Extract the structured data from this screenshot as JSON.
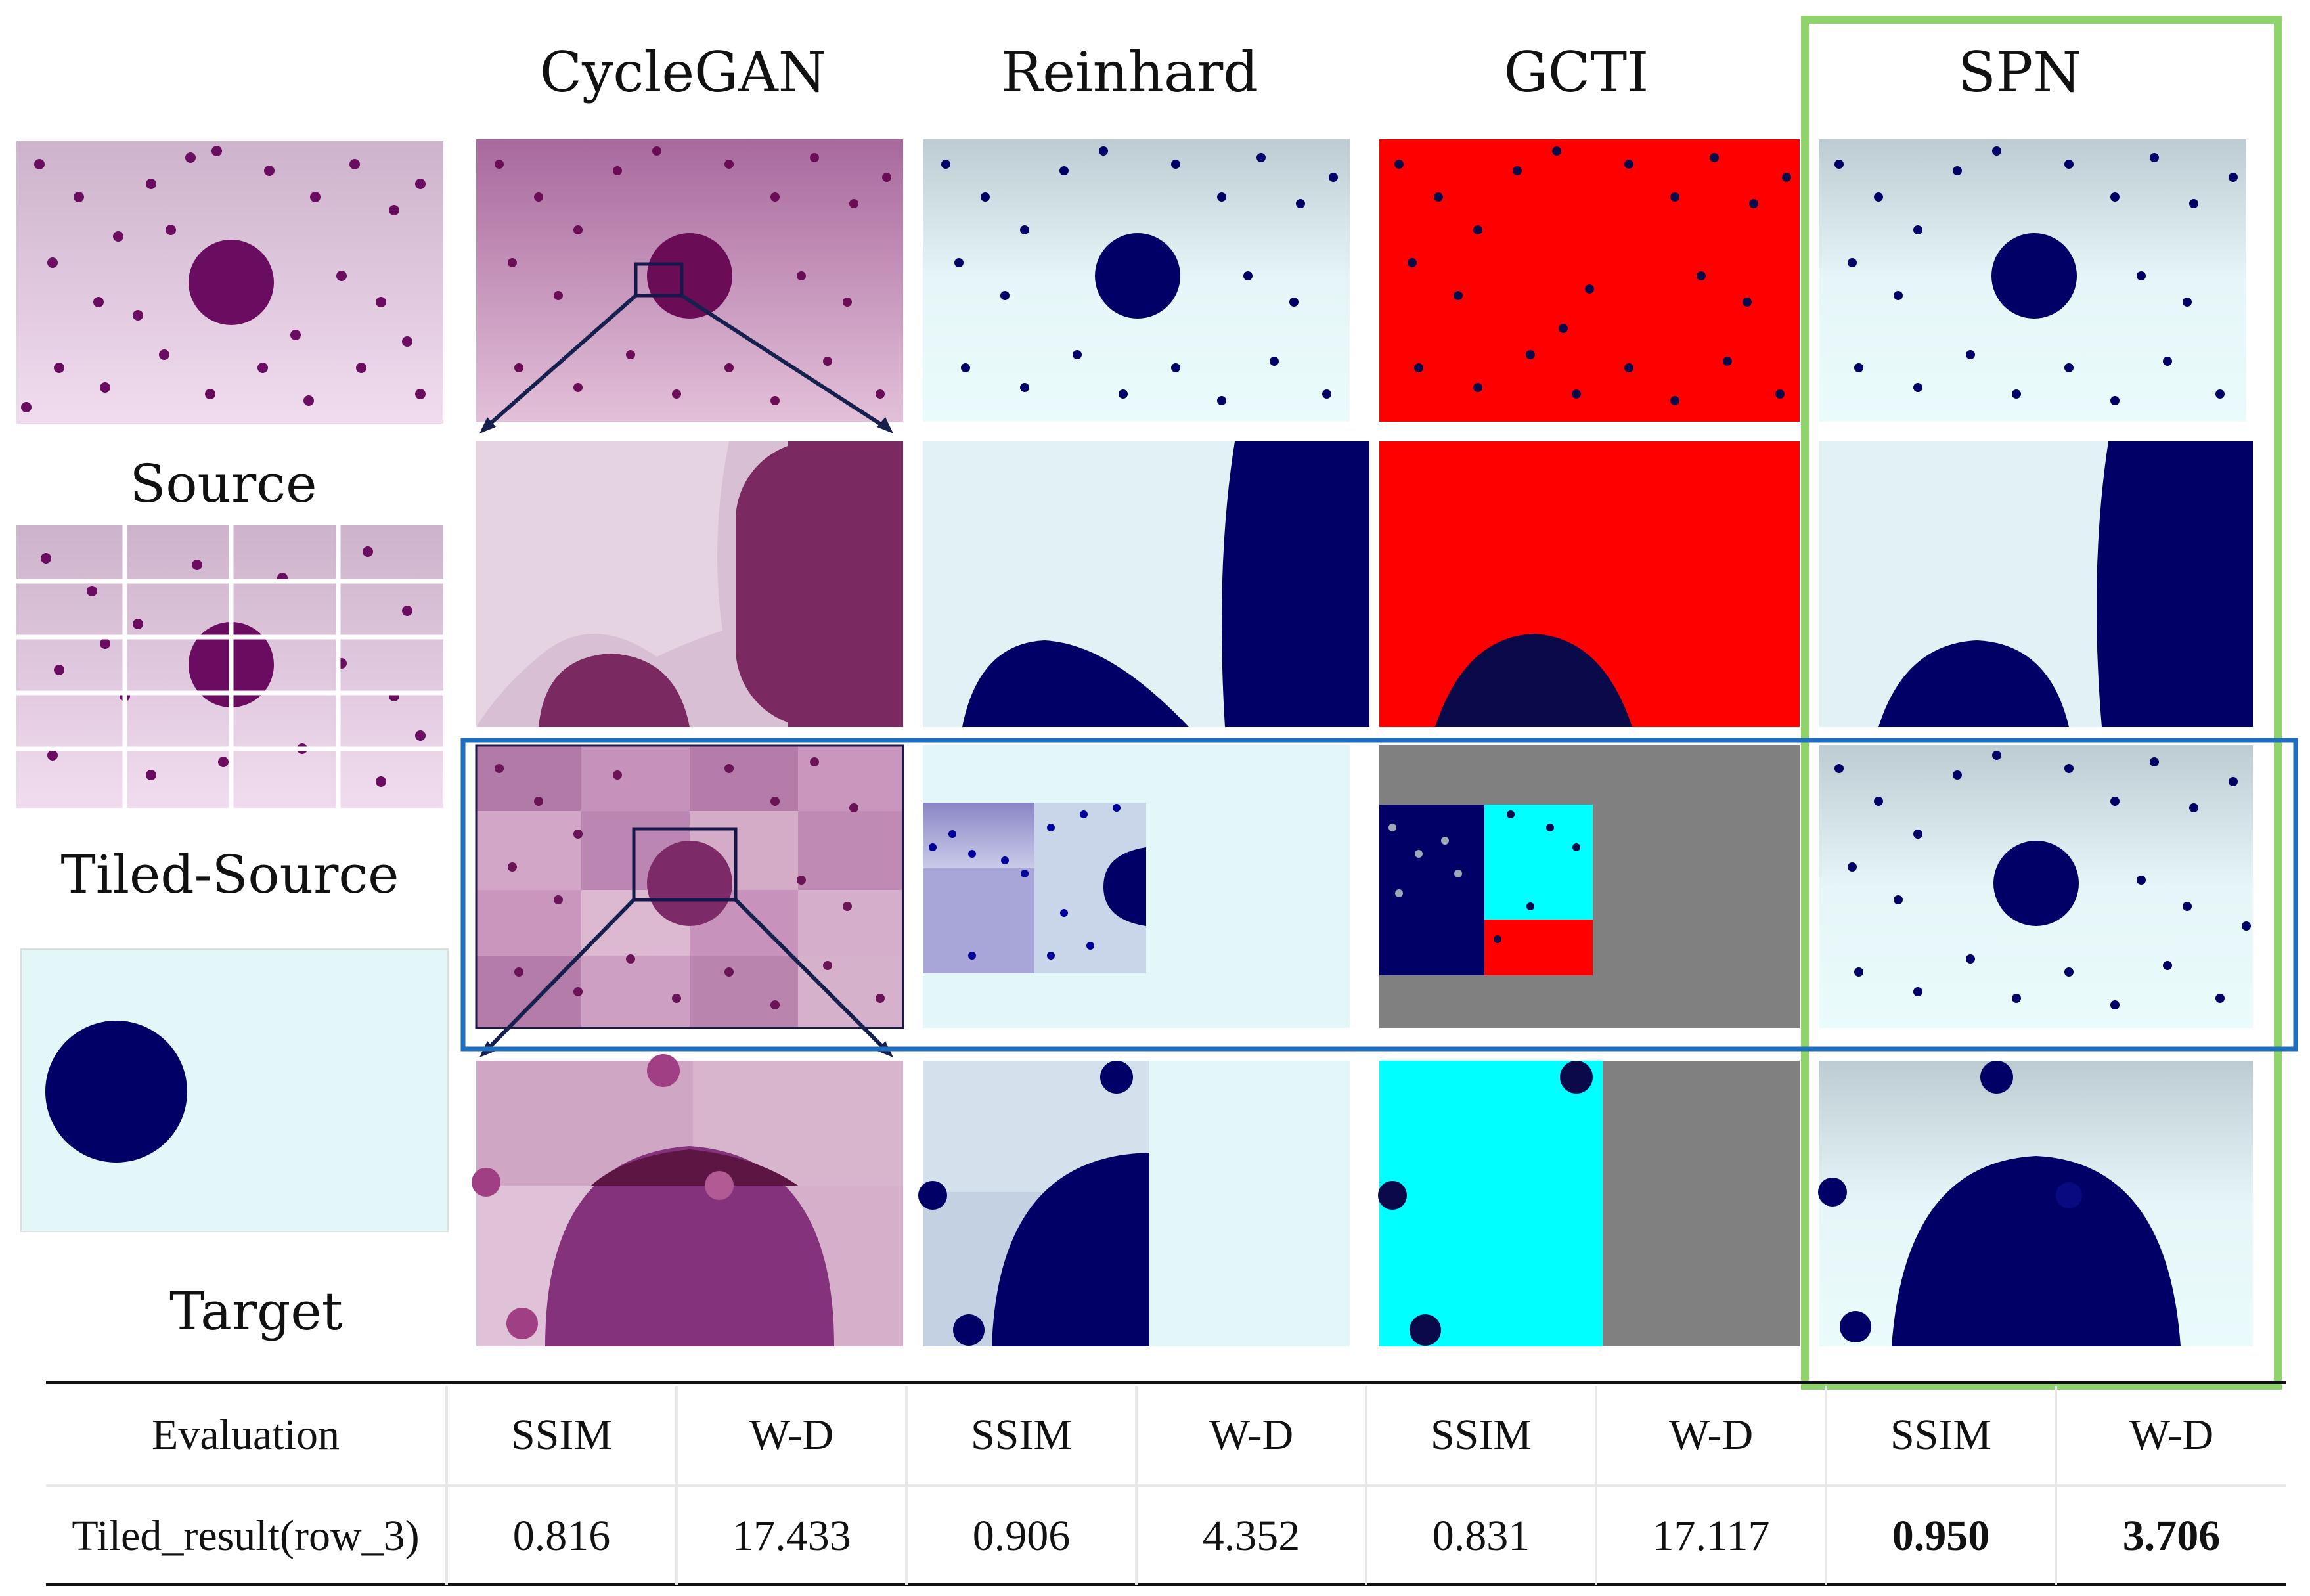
{
  "columns": [
    "CycleGAN",
    "Reinhard",
    "GCTI",
    "SPN"
  ],
  "left_labels": {
    "source": "Source",
    "tiled_source": "Tiled-Source",
    "target": "Target"
  },
  "table": {
    "header": [
      "Evaluation",
      "SSIM",
      "W-D",
      "SSIM",
      "W-D",
      "SSIM",
      "W-D",
      "SSIM",
      "W-D"
    ],
    "row_label": "Tiled_result(row_3)",
    "values": [
      "0.816",
      "17.433",
      "0.906",
      "4.352",
      "0.831",
      "17.117",
      "0.950",
      "3.706"
    ]
  },
  "colors": {
    "cyclegan_pink": "#b77aa8",
    "navy": "#0b0b6e",
    "gcti_red": "#ff0000",
    "gcti_cyan": "#00ffff",
    "gcti_gray": "#808080",
    "light_cyan": "#e3f6f8",
    "highlight_green": "#8ed46a",
    "highlight_blue": "#1f6fc0"
  }
}
